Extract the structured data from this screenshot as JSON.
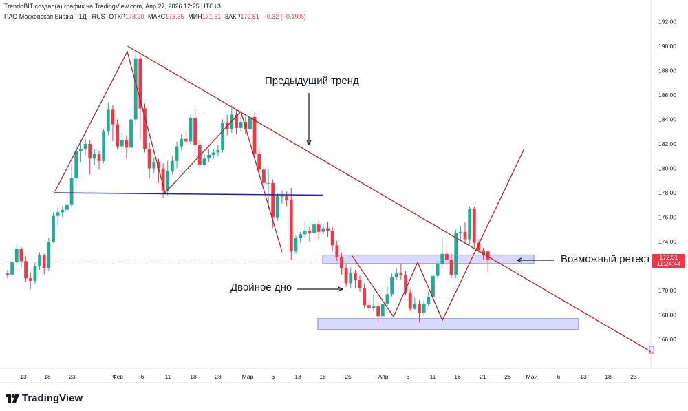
{
  "header": {
    "attribution": "TrendoBIT создал(а) график на TradingView.com, Апр 27, 2026 12:25 UTC+3"
  },
  "legend": {
    "symbol": "ПАО Московская Биржа · 1Д · RUS",
    "open_label": "ОТКР",
    "open": "173,20",
    "high_label": "МАКС",
    "high": "173,35",
    "low_label": "МИН",
    "low": "171,51",
    "close_label": "ЗАКР",
    "close": "172,51",
    "change": "−0,32 (−0,19%)"
  },
  "annotations": {
    "previous_trend": "Предыдущий тренд",
    "double_bottom": "Двойное дно",
    "possible_retest": "Возможный ретест"
  },
  "price_tag": {
    "price": "172,51",
    "countdown": "11:24:44",
    "color": "#F23645"
  },
  "logo": {
    "text": "TradingView"
  },
  "colors": {
    "up": "#22AB94",
    "down": "#F23645",
    "trend": "#B22222",
    "support": "#1E1EAA",
    "zone": "#7B7BE0"
  },
  "chart_data": {
    "type": "candlestick",
    "y_axis_ticks": [
      "192,00",
      "190,00",
      "188,00",
      "186,00",
      "184,00",
      "182,00",
      "180,00",
      "178,00",
      "176,00",
      "174,00",
      "170,00",
      "168,00",
      "166,00"
    ],
    "y_axis_values": [
      192,
      190,
      188,
      186,
      184,
      182,
      180,
      178,
      176,
      174,
      170,
      168,
      166
    ],
    "x_axis_ticks": [
      "13",
      "18",
      "23",
      "Фев",
      "6",
      "11",
      "18",
      "23",
      "Мар",
      "6",
      "13",
      "18",
      "25",
      "Апр",
      "6",
      "11",
      "16",
      "21",
      "26",
      "Май",
      "6",
      "13",
      "18",
      "23"
    ],
    "ylim": [
      164.5,
      192.8
    ],
    "candles": [
      [
        171.4,
        171.3,
        171.0,
        171.7
      ],
      [
        171.3,
        172.3,
        171.1,
        172.7
      ],
      [
        172.3,
        173.4,
        172.0,
        173.8
      ],
      [
        173.4,
        172.4,
        171.9,
        173.6
      ],
      [
        172.4,
        171.0,
        170.7,
        172.8
      ],
      [
        171.0,
        170.8,
        170.1,
        171.5
      ],
      [
        170.8,
        172.0,
        170.5,
        172.3
      ],
      [
        172.0,
        172.9,
        171.7,
        173.1
      ],
      [
        172.9,
        171.8,
        171.3,
        173.0
      ],
      [
        171.8,
        174.0,
        171.6,
        174.3
      ],
      [
        174.0,
        176.1,
        173.9,
        176.4
      ],
      [
        176.1,
        176.4,
        175.2,
        176.8
      ],
      [
        176.4,
        176.6,
        176.0,
        176.9
      ],
      [
        176.6,
        177.0,
        176.3,
        177.4
      ],
      [
        177.0,
        179.2,
        176.8,
        180.4
      ],
      [
        179.2,
        181.4,
        178.5,
        181.9
      ],
      [
        181.4,
        181.6,
        180.5,
        182.3
      ],
      [
        181.6,
        182.0,
        181.0,
        182.4
      ],
      [
        182.0,
        180.8,
        179.5,
        182.3
      ],
      [
        180.8,
        181.2,
        180.3,
        181.6
      ],
      [
        181.2,
        180.6,
        179.9,
        181.4
      ],
      [
        180.6,
        183.0,
        180.4,
        183.2
      ],
      [
        183.0,
        184.8,
        182.7,
        185.4
      ],
      [
        184.8,
        183.6,
        182.2,
        185.2
      ],
      [
        183.6,
        181.8,
        181.6,
        184.0
      ],
      [
        181.8,
        182.3,
        181.5,
        182.9
      ],
      [
        182.3,
        181.7,
        180.8,
        182.7
      ],
      [
        181.7,
        184.0,
        181.5,
        184.5
      ],
      [
        184.0,
        189.0,
        183.6,
        189.6
      ],
      [
        189.0,
        184.9,
        182.3,
        189.3
      ],
      [
        184.9,
        181.6,
        181.3,
        185.3
      ],
      [
        181.6,
        180.0,
        179.2,
        182.1
      ],
      [
        180.0,
        180.5,
        179.6,
        180.9
      ],
      [
        180.5,
        180.0,
        178.8,
        180.8
      ],
      [
        180.0,
        178.2,
        177.6,
        180.4
      ],
      [
        178.2,
        179.8,
        177.8,
        180.6
      ],
      [
        179.8,
        180.6,
        179.5,
        181.0
      ],
      [
        180.6,
        181.8,
        180.0,
        182.2
      ],
      [
        181.8,
        182.4,
        181.5,
        182.8
      ],
      [
        182.4,
        182.2,
        181.9,
        183.0
      ],
      [
        182.2,
        184.1,
        182.0,
        184.4
      ],
      [
        184.1,
        181.9,
        181.0,
        184.8
      ],
      [
        181.9,
        180.3,
        180.1,
        182.3
      ],
      [
        180.3,
        180.8,
        180.1,
        181.2
      ],
      [
        180.8,
        181.1,
        180.5,
        181.6
      ],
      [
        181.1,
        181.3,
        180.8,
        181.6
      ],
      [
        181.3,
        181.5,
        181.0,
        181.9
      ],
      [
        181.5,
        183.7,
        181.3,
        184.0
      ],
      [
        183.7,
        183.2,
        182.7,
        184.4
      ],
      [
        183.2,
        184.4,
        182.9,
        185.2
      ],
      [
        184.4,
        183.3,
        182.8,
        184.8
      ],
      [
        183.3,
        183.8,
        183.0,
        184.3
      ],
      [
        183.8,
        183.2,
        182.8,
        184.2
      ],
      [
        183.2,
        184.2,
        182.9,
        184.5
      ],
      [
        184.2,
        181.2,
        180.8,
        184.6
      ],
      [
        181.2,
        179.9,
        179.4,
        181.7
      ],
      [
        179.9,
        178.8,
        178.2,
        180.3
      ],
      [
        178.8,
        178.8,
        176.7,
        179.9
      ],
      [
        178.8,
        176.0,
        175.1,
        179.1
      ],
      [
        176.0,
        177.7,
        175.7,
        178.0
      ],
      [
        177.7,
        177.7,
        177.1,
        178.2
      ],
      [
        177.7,
        177.4,
        176.9,
        178.1
      ],
      [
        177.4,
        173.2,
        172.5,
        178.4
      ],
      [
        173.2,
        174.3,
        173.0,
        174.5
      ],
      [
        174.3,
        174.6,
        173.9,
        174.8
      ],
      [
        174.6,
        174.9,
        174.3,
        175.6
      ],
      [
        174.9,
        174.7,
        174.0,
        175.2
      ],
      [
        174.7,
        175.4,
        174.5,
        175.9
      ],
      [
        175.4,
        174.8,
        174.2,
        175.7
      ],
      [
        174.8,
        175.1,
        174.6,
        175.5
      ],
      [
        175.1,
        174.9,
        174.4,
        175.6
      ],
      [
        174.9,
        173.7,
        173.2,
        175.2
      ],
      [
        173.7,
        172.7,
        172.4,
        174.1
      ],
      [
        172.7,
        171.8,
        171.3,
        173.1
      ],
      [
        171.8,
        170.6,
        170.3,
        172.2
      ],
      [
        170.6,
        171.4,
        170.2,
        171.9
      ],
      [
        171.4,
        170.9,
        170.2,
        171.7
      ],
      [
        170.9,
        170.2,
        169.9,
        171.2
      ],
      [
        170.2,
        168.8,
        168.5,
        170.6
      ],
      [
        168.8,
        168.6,
        168.3,
        169.2
      ],
      [
        168.6,
        168.7,
        168.3,
        169.7
      ],
      [
        168.7,
        167.9,
        167.4,
        169.1
      ],
      [
        167.9,
        168.9,
        167.7,
        169.3
      ],
      [
        168.9,
        169.7,
        168.7,
        170.3
      ],
      [
        169.7,
        171.1,
        169.5,
        171.4
      ],
      [
        171.1,
        171.4,
        170.9,
        171.8
      ],
      [
        171.4,
        171.3,
        170.9,
        172.2
      ],
      [
        171.3,
        169.8,
        169.6,
        171.6
      ],
      [
        169.8,
        168.5,
        168.3,
        170.1
      ],
      [
        168.5,
        168.9,
        168.4,
        169.4
      ],
      [
        168.9,
        168.2,
        167.4,
        169.2
      ],
      [
        168.2,
        168.9,
        167.9,
        169.2
      ],
      [
        168.9,
        169.5,
        168.7,
        169.9
      ],
      [
        169.5,
        171.2,
        169.3,
        171.6
      ],
      [
        171.2,
        172.2,
        171.0,
        172.5
      ],
      [
        172.2,
        173.0,
        171.8,
        174.4
      ],
      [
        173.0,
        172.5,
        172.1,
        173.6
      ],
      [
        172.5,
        171.3,
        171.0,
        173.0
      ],
      [
        171.3,
        174.7,
        171.0,
        175.0
      ],
      [
        174.7,
        174.8,
        174.1,
        175.3
      ],
      [
        174.8,
        174.2,
        173.9,
        175.6
      ],
      [
        174.2,
        176.7,
        173.8,
        176.9
      ],
      [
        176.7,
        173.9,
        173.5,
        176.9
      ],
      [
        173.9,
        173.3,
        173.1,
        174.2
      ],
      [
        173.3,
        172.9,
        172.5,
        173.5
      ],
      [
        173.2,
        172.5,
        171.5,
        173.3
      ]
    ],
    "lines": [
      {
        "name": "",
        "x1": 185.5,
        "p1": 190.0,
        "x2": 946,
        "p2": 165.0
      },
      {
        "name": "",
        "x1": 79,
        "p1": 178.0,
        "x2": 470,
        "p2": 177.8
      }
    ],
    "zones": [
      {
        "p_top": 172.9,
        "p_bottom": 172.2
      },
      {
        "p_top": 167.7,
        "p_bottom": 166.8
      }
    ],
    "current_price": 172.51
  }
}
